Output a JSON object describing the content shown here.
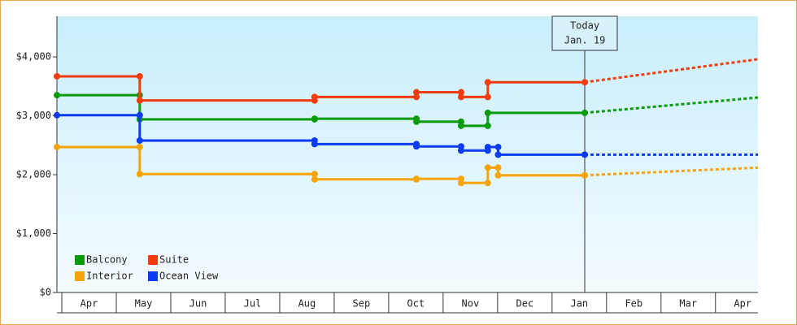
{
  "chart_data": {
    "type": "step",
    "series": [
      {
        "name": "Balcony",
        "color": "#0a9a0a",
        "x": [
          -0.09,
          1.43,
          4.64,
          6.51,
          7.33,
          7.82,
          9.6
        ],
        "values": [
          3350,
          2940,
          2950,
          2900,
          2830,
          3050,
          3050
        ],
        "forecast_x": [
          9.6,
          12.78
        ],
        "forecast_values": [
          3050,
          3310
        ]
      },
      {
        "name": "Suite",
        "color": "#f23c0c",
        "x": [
          -0.09,
          1.43,
          4.64,
          6.51,
          7.33,
          7.82,
          9.6
        ],
        "values": [
          3670,
          3260,
          3320,
          3400,
          3320,
          3570,
          3570
        ],
        "forecast_x": [
          9.6,
          12.78
        ],
        "forecast_values": [
          3570,
          3960
        ]
      },
      {
        "name": "Interior",
        "color": "#f5a40c",
        "x": [
          -0.09,
          1.43,
          4.64,
          6.51,
          7.33,
          7.82,
          8.01,
          9.6
        ],
        "values": [
          2470,
          2010,
          1920,
          1930,
          1860,
          2120,
          1990,
          1990
        ],
        "forecast_x": [
          9.6,
          12.78
        ],
        "forecast_values": [
          1990,
          2120
        ]
      },
      {
        "name": "Ocean View",
        "color": "#0c3cf2",
        "x": [
          -0.09,
          1.43,
          4.64,
          6.51,
          7.33,
          7.82,
          8.01,
          9.6
        ],
        "values": [
          3010,
          2580,
          2520,
          2480,
          2410,
          2470,
          2340,
          2340
        ],
        "forecast_x": [
          9.6,
          12.78
        ],
        "forecast_values": [
          2340,
          2340
        ]
      }
    ],
    "today": {
      "x": 9.6,
      "label": "Today",
      "date": "Jan. 19"
    },
    "xlim": [
      -0.09,
      12.78
    ],
    "xticks": [
      {
        "value": 0.5,
        "label": "Apr"
      },
      {
        "value": 1.5,
        "label": "May"
      },
      {
        "value": 2.5,
        "label": "Jun"
      },
      {
        "value": 3.5,
        "label": "Jul"
      },
      {
        "value": 4.5,
        "label": "Aug"
      },
      {
        "value": 5.5,
        "label": "Sep"
      },
      {
        "value": 6.5,
        "label": "Oct"
      },
      {
        "value": 7.5,
        "label": "Nov"
      },
      {
        "value": 8.5,
        "label": "Dec"
      },
      {
        "value": 9.5,
        "label": "Jan"
      },
      {
        "value": 10.5,
        "label": "Feb"
      },
      {
        "value": 11.5,
        "label": "Mar"
      },
      {
        "value": 12.5,
        "label": "Apr"
      }
    ],
    "ylim": [
      0,
      4690
    ],
    "yticks": [
      {
        "value": 0,
        "label": "$0"
      },
      {
        "value": 1000,
        "label": "$1,000"
      },
      {
        "value": 2000,
        "label": "$2,000"
      },
      {
        "value": 3000,
        "label": "$3,000"
      },
      {
        "value": 4000,
        "label": "$4,000"
      }
    ]
  }
}
